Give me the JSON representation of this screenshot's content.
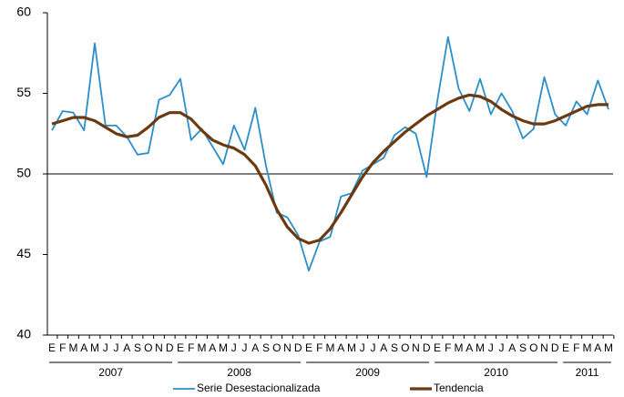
{
  "chart_data": {
    "type": "line",
    "categories": [
      "E",
      "F",
      "M",
      "A",
      "M",
      "J",
      "J",
      "A",
      "S",
      "O",
      "N",
      "D",
      "E",
      "F",
      "M",
      "A",
      "M",
      "J",
      "J",
      "A",
      "S",
      "O",
      "N",
      "D",
      "E",
      "F",
      "M",
      "A",
      "M",
      "J",
      "J",
      "A",
      "S",
      "O",
      "N",
      "D",
      "E",
      "F",
      "M",
      "A",
      "M",
      "J",
      "J",
      "A",
      "S",
      "O",
      "N",
      "D",
      "E",
      "F",
      "M",
      "A",
      "M"
    ],
    "years": [
      {
        "label": "2007",
        "months": 12
      },
      {
        "label": "2008",
        "months": 12
      },
      {
        "label": "2009",
        "months": 12
      },
      {
        "label": "2010",
        "months": 12
      },
      {
        "label": "2011",
        "months": 5
      }
    ],
    "series": [
      {
        "name": "Serie Desestacionalizada",
        "color": "#2b8ec8",
        "width": 1.8,
        "values": [
          52.7,
          53.9,
          53.8,
          52.7,
          58.1,
          53.0,
          53.0,
          52.3,
          51.2,
          51.3,
          54.6,
          54.9,
          55.9,
          52.1,
          52.8,
          51.7,
          50.6,
          53.0,
          51.5,
          54.1,
          50.5,
          47.6,
          47.3,
          46.2,
          44.0,
          45.8,
          46.1,
          48.6,
          48.8,
          50.2,
          50.6,
          51.0,
          52.4,
          52.9,
          52.5,
          49.8,
          54.5,
          58.5,
          55.3,
          53.9,
          55.9,
          53.7,
          55.0,
          53.9,
          52.2,
          52.8,
          56.0,
          53.7,
          53.0,
          54.5,
          53.7,
          55.8,
          54.0
        ]
      },
      {
        "name": "Tendencia",
        "color": "#6b3a12",
        "width": 3.2,
        "values": [
          53.1,
          53.3,
          53.5,
          53.5,
          53.3,
          52.9,
          52.5,
          52.3,
          52.4,
          52.9,
          53.5,
          53.8,
          53.8,
          53.4,
          52.7,
          52.1,
          51.8,
          51.6,
          51.2,
          50.5,
          49.3,
          47.8,
          46.7,
          46.0,
          45.7,
          45.9,
          46.6,
          47.6,
          48.7,
          49.8,
          50.7,
          51.4,
          52.0,
          52.6,
          53.1,
          53.6,
          54.0,
          54.4,
          54.7,
          54.9,
          54.8,
          54.5,
          54.0,
          53.6,
          53.3,
          53.1,
          53.1,
          53.3,
          53.6,
          53.9,
          54.2,
          54.3,
          54.3
        ]
      }
    ],
    "ylim": [
      40,
      60
    ],
    "yticks": [
      40,
      45,
      50,
      55,
      60
    ],
    "hline": 50
  }
}
